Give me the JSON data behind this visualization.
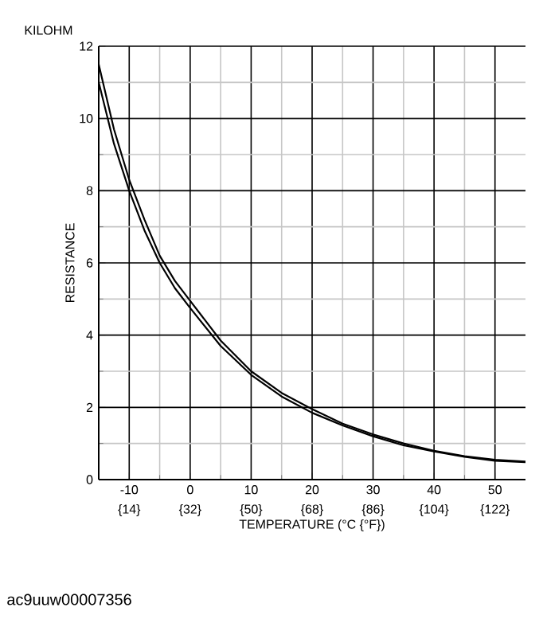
{
  "chart_data": {
    "type": "line",
    "xlabel": "TEMPERATURE    (°C {°F})",
    "ylabel": "RESISTANCE",
    "annotations": [
      "KILOHM",
      "ac9uuw00007356"
    ],
    "x": [
      -15,
      -12.5,
      -10,
      -7.5,
      -5,
      -2.5,
      0,
      5,
      10,
      15,
      20,
      25,
      30,
      35,
      40,
      45,
      50,
      55
    ],
    "series": [
      {
        "color": "#000000",
        "values": [
          11.5,
          9.7,
          8.3,
          7.2,
          6.2,
          5.5,
          4.95,
          3.85,
          3.0,
          2.4,
          1.95,
          1.55,
          1.25,
          1.0,
          0.8,
          0.65,
          0.55,
          0.5
        ]
      },
      {
        "color": "#000000",
        "values": [
          11.0,
          9.3,
          8.0,
          6.9,
          6.0,
          5.3,
          4.75,
          3.7,
          2.9,
          2.3,
          1.85,
          1.5,
          1.2,
          0.95,
          0.78,
          0.63,
          0.52,
          0.48
        ]
      }
    ],
    "xlim": [
      -15,
      55
    ],
    "ylim": [
      0,
      12
    ],
    "xticks": [
      -10,
      0,
      10,
      20,
      30,
      40,
      50
    ],
    "x2lim": [
      5,
      131
    ],
    "x2ticks": [
      {
        "value": 14,
        "label": "{14}"
      },
      {
        "value": 32,
        "label": "{32}"
      },
      {
        "value": 50,
        "label": "{50}"
      },
      {
        "value": 68,
        "label": "{68}"
      },
      {
        "value": 86,
        "label": "{86}"
      },
      {
        "value": 104,
        "label": "{104}"
      },
      {
        "value": 122,
        "label": "{122}"
      }
    ],
    "yticks": [
      0,
      2,
      4,
      6,
      8,
      10,
      12
    ],
    "grid": true,
    "marker": "none",
    "line_style": "solid"
  }
}
